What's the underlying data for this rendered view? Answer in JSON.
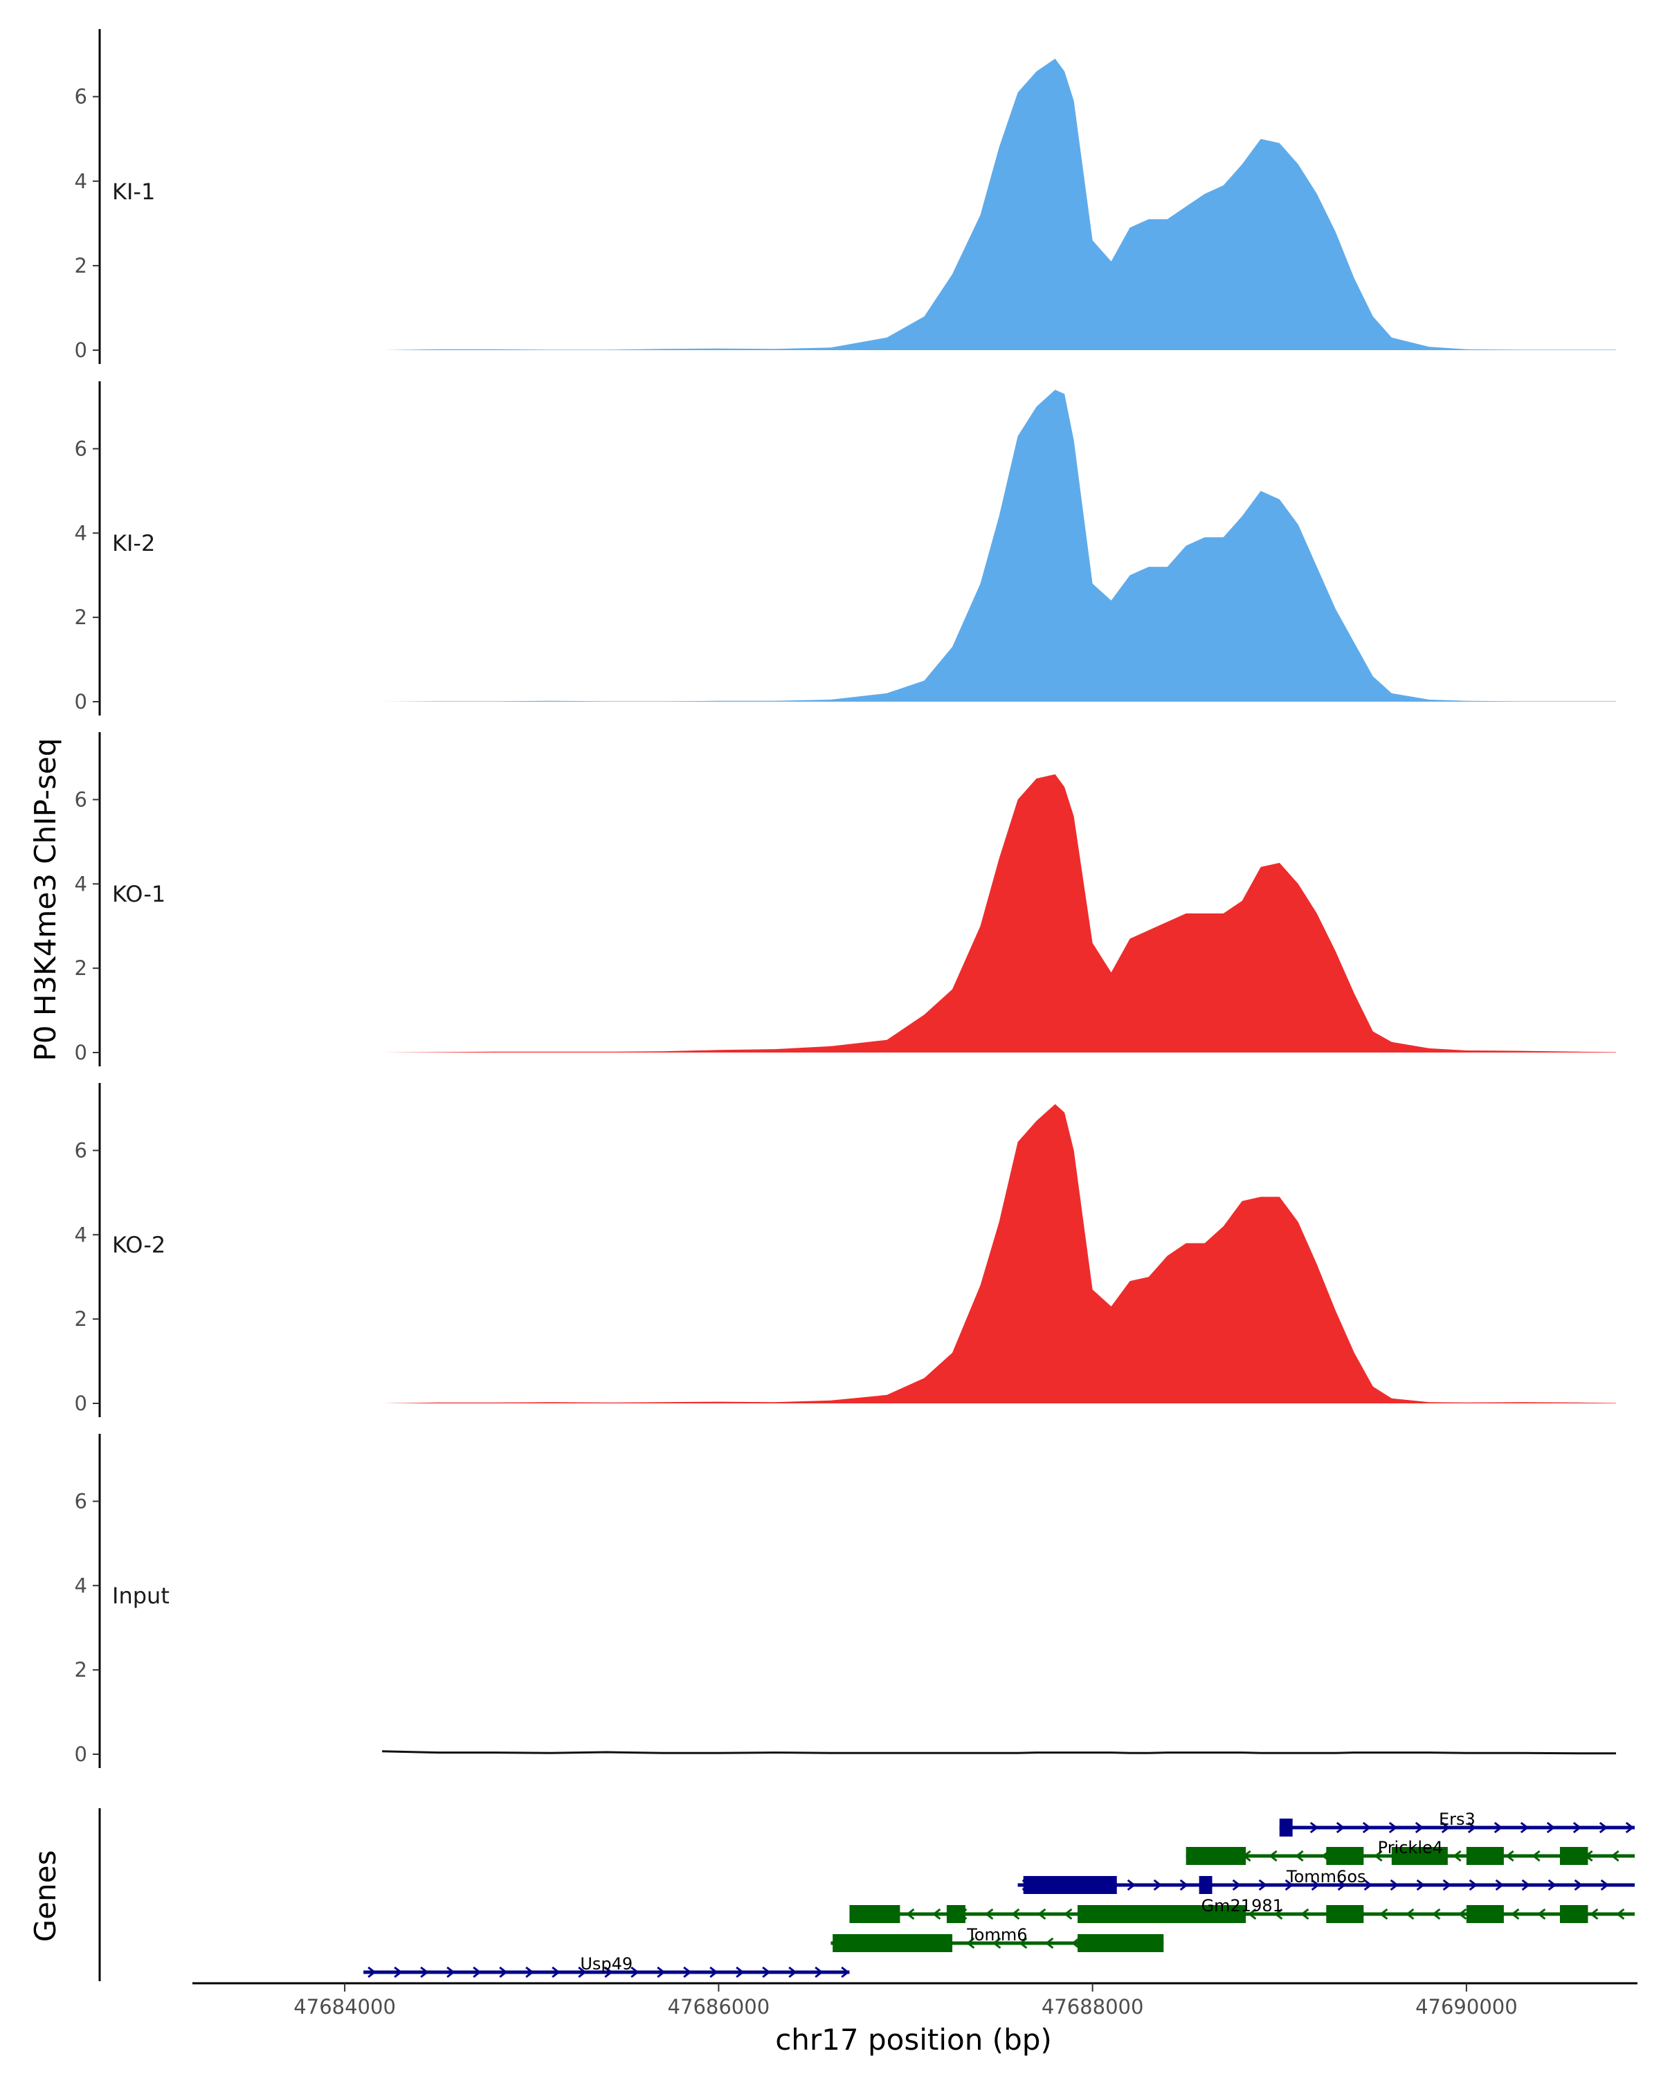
{
  "chart_data": {
    "type": "area",
    "title": "",
    "ylabel": "P0 H3K4me3 ChIP-seq",
    "xlabel": "chr17 position (bp)",
    "ylim": [
      0,
      7.6
    ],
    "xlim": [
      47683200,
      47690900
    ],
    "y_ticks": [
      "0",
      "2",
      "4",
      "6"
    ],
    "x_ticks": [
      {
        "value": 47684000,
        "label": "47684000"
      },
      {
        "value": 47686000,
        "label": "47686000"
      },
      {
        "value": 47688000,
        "label": "47688000"
      },
      {
        "value": 47690000,
        "label": "47690000"
      }
    ],
    "x": [
      47684200,
      47684500,
      47684800,
      47685100,
      47685400,
      47685700,
      47686000,
      47686300,
      47686600,
      47686900,
      47687100,
      47687250,
      47687400,
      47687500,
      47687600,
      47687700,
      47687800,
      47687850,
      47687900,
      47688000,
      47688100,
      47688200,
      47688300,
      47688400,
      47688500,
      47688600,
      47688700,
      47688800,
      47688900,
      47689000,
      47689100,
      47689200,
      47689300,
      47689400,
      47689500,
      47689600,
      47689800,
      47690000,
      47690300,
      47690600,
      47690800
    ],
    "series": [
      {
        "name": "KI-1",
        "color": "#5eabeb",
        "values": [
          0,
          0.02,
          0.02,
          0.01,
          0.01,
          0.03,
          0.04,
          0.03,
          0.06,
          0.3,
          0.8,
          1.8,
          3.2,
          4.8,
          6.1,
          6.6,
          6.9,
          6.6,
          5.9,
          2.6,
          2.1,
          2.9,
          3.1,
          3.1,
          3.4,
          3.7,
          3.9,
          4.4,
          5.0,
          4.9,
          4.4,
          3.7,
          2.8,
          1.7,
          0.8,
          0.3,
          0.08,
          0.02,
          0.01,
          0.01,
          0.01
        ]
      },
      {
        "name": "KI-2",
        "color": "#5eabeb",
        "values": [
          0,
          0.01,
          0.01,
          0.02,
          0.01,
          0.01,
          0.02,
          0.02,
          0.05,
          0.2,
          0.5,
          1.3,
          2.8,
          4.4,
          6.3,
          7.0,
          7.4,
          7.3,
          6.2,
          2.8,
          2.4,
          3.0,
          3.2,
          3.2,
          3.7,
          3.9,
          3.9,
          4.4,
          5.0,
          4.8,
          4.2,
          3.2,
          2.2,
          1.4,
          0.6,
          0.2,
          0.05,
          0.02,
          0.01,
          0.01,
          0.01
        ]
      },
      {
        "name": "KO-1",
        "color": "#ee2c2c",
        "values": [
          0,
          0.01,
          0.02,
          0.02,
          0.02,
          0.03,
          0.06,
          0.08,
          0.15,
          0.3,
          0.9,
          1.5,
          3.0,
          4.6,
          6.0,
          6.5,
          6.6,
          6.3,
          5.6,
          2.6,
          1.9,
          2.7,
          2.9,
          3.1,
          3.3,
          3.3,
          3.3,
          3.6,
          4.4,
          4.5,
          4.0,
          3.3,
          2.4,
          1.4,
          0.5,
          0.25,
          0.1,
          0.05,
          0.04,
          0.02,
          0.01
        ]
      },
      {
        "name": "KO-2",
        "color": "#ee2c2c",
        "values": [
          0,
          0.02,
          0.02,
          0.03,
          0.02,
          0.03,
          0.04,
          0.03,
          0.07,
          0.2,
          0.6,
          1.2,
          2.8,
          4.3,
          6.2,
          6.7,
          7.1,
          6.9,
          6.0,
          2.7,
          2.3,
          2.9,
          3.0,
          3.5,
          3.8,
          3.8,
          4.2,
          4.8,
          4.9,
          4.9,
          4.3,
          3.3,
          2.2,
          1.2,
          0.4,
          0.12,
          0.03,
          0.02,
          0.03,
          0.02,
          0.01
        ]
      },
      {
        "name": "Input",
        "color": "#111111",
        "values": [
          0.07,
          0.04,
          0.04,
          0.03,
          0.05,
          0.03,
          0.03,
          0.04,
          0.03,
          0.03,
          0.03,
          0.03,
          0.03,
          0.03,
          0.03,
          0.04,
          0.04,
          0.04,
          0.04,
          0.04,
          0.04,
          0.03,
          0.03,
          0.04,
          0.04,
          0.04,
          0.04,
          0.04,
          0.03,
          0.03,
          0.03,
          0.03,
          0.03,
          0.04,
          0.04,
          0.04,
          0.04,
          0.03,
          0.03,
          0.02,
          0.02
        ]
      }
    ],
    "genes_track": {
      "label": "Genes",
      "genes": [
        {
          "name": "Ers3",
          "row": 0,
          "strand": "+",
          "color": "#00008b",
          "start": 47689000,
          "end": 47690900,
          "exons": [
            [
              47689000,
              47689070
            ]
          ]
        },
        {
          "name": "Prickle4",
          "row": 1,
          "strand": "-",
          "color": "#006400",
          "start": 47688500,
          "end": 47690900,
          "exons": [
            [
              47688500,
              47688820
            ],
            [
              47689250,
              47689450
            ],
            [
              47689600,
              47689900
            ],
            [
              47690000,
              47690200
            ],
            [
              47690500,
              47690650
            ]
          ]
        },
        {
          "name": "Tomm6os",
          "row": 2,
          "strand": "+",
          "color": "#00008b",
          "start": 47687600,
          "end": 47690900,
          "exons": [
            [
              47687630,
              47688130
            ],
            [
              47688570,
              47688640
            ]
          ]
        },
        {
          "name": "Gm21981",
          "row": 3,
          "strand": "-",
          "color": "#006400",
          "start": 47686700,
          "end": 47690900,
          "exons": [
            [
              47686700,
              47686970
            ],
            [
              47687220,
              47687320
            ],
            [
              47687920,
              47688820
            ],
            [
              47689250,
              47689450
            ],
            [
              47690000,
              47690200
            ],
            [
              47690500,
              47690650
            ]
          ]
        },
        {
          "name": "Tomm6",
          "row": 4,
          "strand": "-",
          "color": "#006400",
          "start": 47686600,
          "end": 47688380,
          "exons": [
            [
              47686610,
              47687250
            ],
            [
              47687920,
              47688380
            ]
          ]
        },
        {
          "name": "Usp49",
          "row": 5,
          "strand": "+",
          "color": "#00008b",
          "start": 47684100,
          "end": 47686700,
          "exons": []
        }
      ]
    }
  }
}
